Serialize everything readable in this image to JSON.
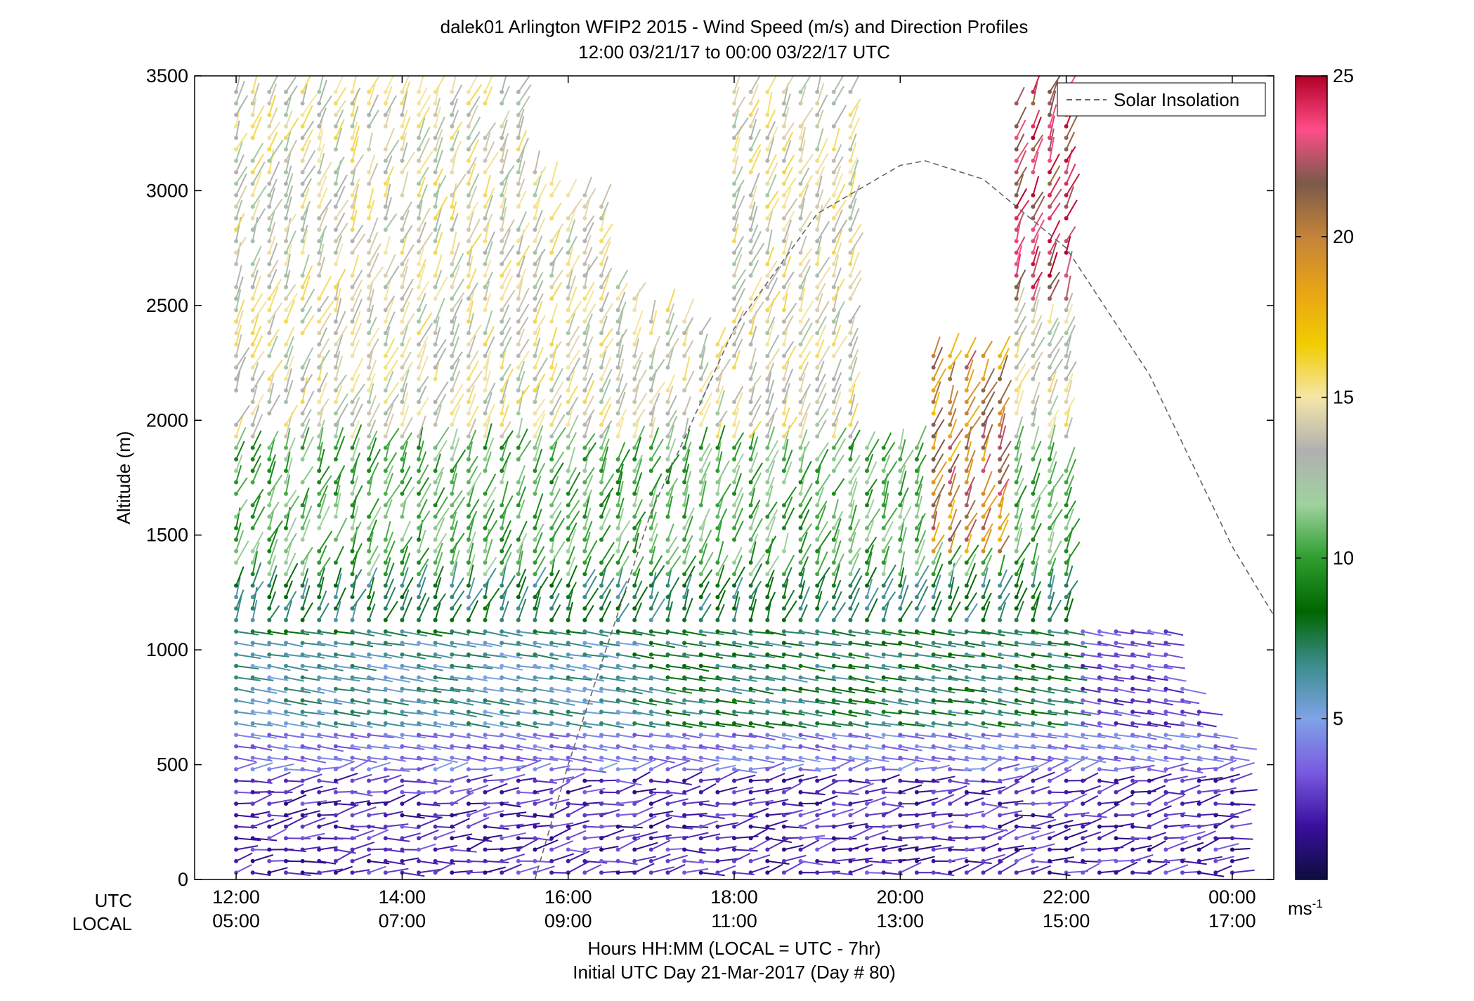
{
  "chart_data": {
    "type": "scatter",
    "title": "dalek01 Arlington WFIP2 2015 - Wind Speed (m/s) and Direction Profiles",
    "subtitle": "12:00 03/21/17 to 00:00 03/22/17  UTC",
    "ylabel": "Altitude (m)",
    "xlabel": "Hours HH:MM  (LOCAL = UTC - 7hr)",
    "xlabel2": "Initial UTC Day 21-Mar-2017 (Day # 80)",
    "row_label_utc": "UTC",
    "row_label_local": "LOCAL",
    "xlim_hours": [
      11.5,
      24.5
    ],
    "ylim": [
      0,
      3500
    ],
    "x_ticks_utc": [
      "12:00",
      "14:00",
      "16:00",
      "18:00",
      "20:00",
      "22:00",
      "00:00"
    ],
    "x_ticks_local": [
      "05:00",
      "07:00",
      "09:00",
      "11:00",
      "13:00",
      "15:00",
      "17:00"
    ],
    "x_tick_hours": [
      12,
      14,
      16,
      18,
      20,
      22,
      24
    ],
    "y_ticks": [
      0,
      500,
      1000,
      1500,
      2000,
      2500,
      3000,
      3500
    ],
    "legend": {
      "label": "Solar Insolation",
      "position": "top-right",
      "style": "dashed gray"
    },
    "colorbar": {
      "range": [
        0,
        25
      ],
      "ticks": [
        5,
        10,
        15,
        20,
        25
      ],
      "tick_labels": [
        "5",
        "10",
        "15",
        "20",
        "25"
      ],
      "unit": "ms",
      "unit_exp": "-1",
      "colors": [
        "#0d0d3d",
        "#3a0f9e",
        "#7a5ae0",
        "#7fa3e8",
        "#3c8d8d",
        "#006600",
        "#2e9e2e",
        "#9fd29f",
        "#b0b0b0",
        "#f5e6a8",
        "#f2cc00",
        "#e8a317",
        "#c4833a",
        "#7a5a4a",
        "#ff4d88",
        "#b00026"
      ]
    },
    "solar_insolation_curve": {
      "hours": [
        15.6,
        16.0,
        17.0,
        18.0,
        19.0,
        20.0,
        20.3,
        21.0,
        22.0,
        23.0,
        24.0,
        24.5
      ],
      "altitude": [
        0,
        500,
        1600,
        2400,
        2900,
        3110,
        3130,
        3050,
        2750,
        2200,
        1450,
        1150
      ]
    },
    "wind_profiles": {
      "description_note": "wind barb columns; speed (m/s) encoded by color, barb direction by wind direction",
      "column_hours": [
        12.0,
        12.2,
        12.4,
        12.6,
        12.8,
        13.0,
        13.2,
        13.4,
        13.6,
        13.8,
        14.0,
        14.2,
        14.4,
        14.6,
        14.8,
        15.0,
        15.2,
        15.4,
        15.6,
        15.8,
        16.0,
        16.2,
        16.4,
        16.6,
        16.8,
        17.0,
        17.2,
        17.4,
        17.6,
        17.8,
        18.0,
        18.2,
        18.4,
        18.6,
        18.8,
        19.0,
        19.2,
        19.4,
        19.6,
        19.8,
        20.0,
        20.2,
        20.4,
        20.6,
        20.8,
        21.0,
        21.2,
        21.4,
        21.6,
        21.8,
        22.0,
        22.2,
        22.4,
        22.6,
        22.8,
        23.0,
        23.2,
        23.4,
        23.6,
        23.8,
        24.0
      ]
    }
  }
}
